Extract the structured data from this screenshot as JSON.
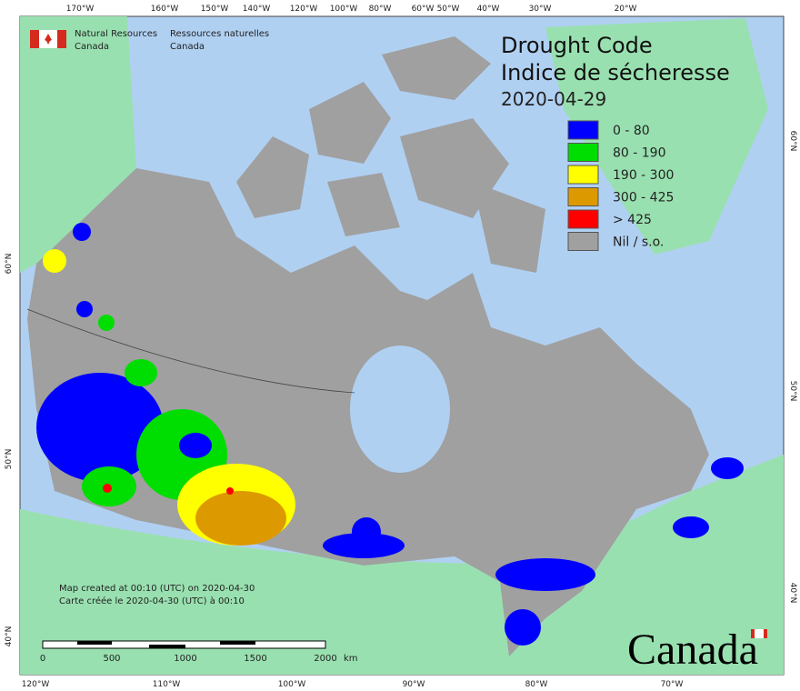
{
  "header": {
    "agency_en": [
      "Natural Resources",
      "Canada"
    ],
    "agency_fr": [
      "Ressources naturelles",
      "Canada"
    ]
  },
  "map": {
    "title_en": "Drought Code",
    "title_fr": "Indice de sécheresse",
    "date": "2020-04-29",
    "legend": [
      {
        "label": "0 - 80",
        "color": "#0000ff"
      },
      {
        "label": "80 - 190",
        "color": "#00dd00"
      },
      {
        "label": "190 - 300",
        "color": "#ffff00"
      },
      {
        "label": "300 - 425",
        "color": "#dd9900"
      },
      {
        "label": "> 425",
        "color": "#ff0000"
      },
      {
        "label": "Nil / s.o.",
        "color": "#a0a0a0"
      }
    ],
    "top_longitudes": [
      "170°W",
      "160°W",
      "150°W",
      "140°W",
      "120°W",
      "100°W",
      "80°W",
      "60°W",
      "50°W",
      "40°W",
      "30°W",
      "20°W"
    ],
    "bottom_longitudes": [
      "120°W",
      "110°W",
      "100°W",
      "90°W",
      "80°W",
      "70°W"
    ],
    "left_latitudes": [
      "60°N",
      "50°N",
      "40°N"
    ],
    "right_latitudes": [
      "60°N",
      "50°N",
      "40°N"
    ],
    "notes": [
      "Map created at 00:10 (UTC) on 2020-04-30",
      "Carte créée le 2020-04-30 (UTC) à 00:10"
    ],
    "scale": {
      "labels": [
        0,
        500,
        1000,
        1500,
        2000
      ],
      "unit": "km"
    },
    "wordmark": "Canada"
  }
}
